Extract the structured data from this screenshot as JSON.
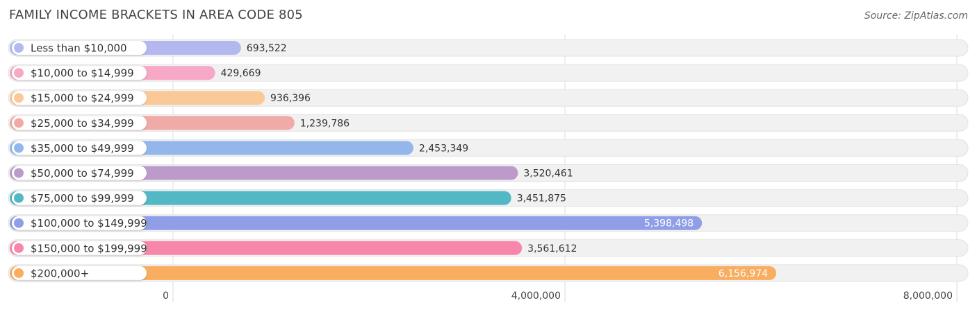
{
  "chart_data": {
    "type": "bar",
    "orientation": "horizontal",
    "title": "FAMILY INCOME BRACKETS IN AREA CODE 805",
    "source": "Source: ZipAtlas.com",
    "categories": [
      "Less than $10,000",
      "$10,000 to $14,999",
      "$15,000 to $24,999",
      "$25,000 to $34,999",
      "$35,000 to $49,999",
      "$50,000 to $74,999",
      "$75,000 to $99,999",
      "$100,000 to $149,999",
      "$150,000 to $199,999",
      "$200,000+"
    ],
    "values": [
      693522,
      429669,
      936396,
      1239786,
      2453349,
      3520461,
      3451875,
      5398498,
      3561612,
      6156974
    ],
    "value_labels": [
      "693,522",
      "429,669",
      "936,396",
      "1,239,786",
      "2,453,349",
      "3,520,461",
      "3,451,875",
      "5,398,498",
      "3,561,612",
      "6,156,974"
    ],
    "colors": [
      "#b3b9ee",
      "#f7a8c6",
      "#fbc897",
      "#f0aaa8",
      "#93b7ea",
      "#bc9aca",
      "#52b8c5",
      "#8f9ee6",
      "#f786aa",
      "#f8ad60"
    ],
    "xlim": [
      0,
      8000000
    ],
    "ticks": [
      0,
      4000000,
      8000000
    ],
    "tick_labels": [
      "0",
      "4,000,000",
      "8,000,000"
    ],
    "grid": true,
    "xlabel": "",
    "ylabel": ""
  }
}
